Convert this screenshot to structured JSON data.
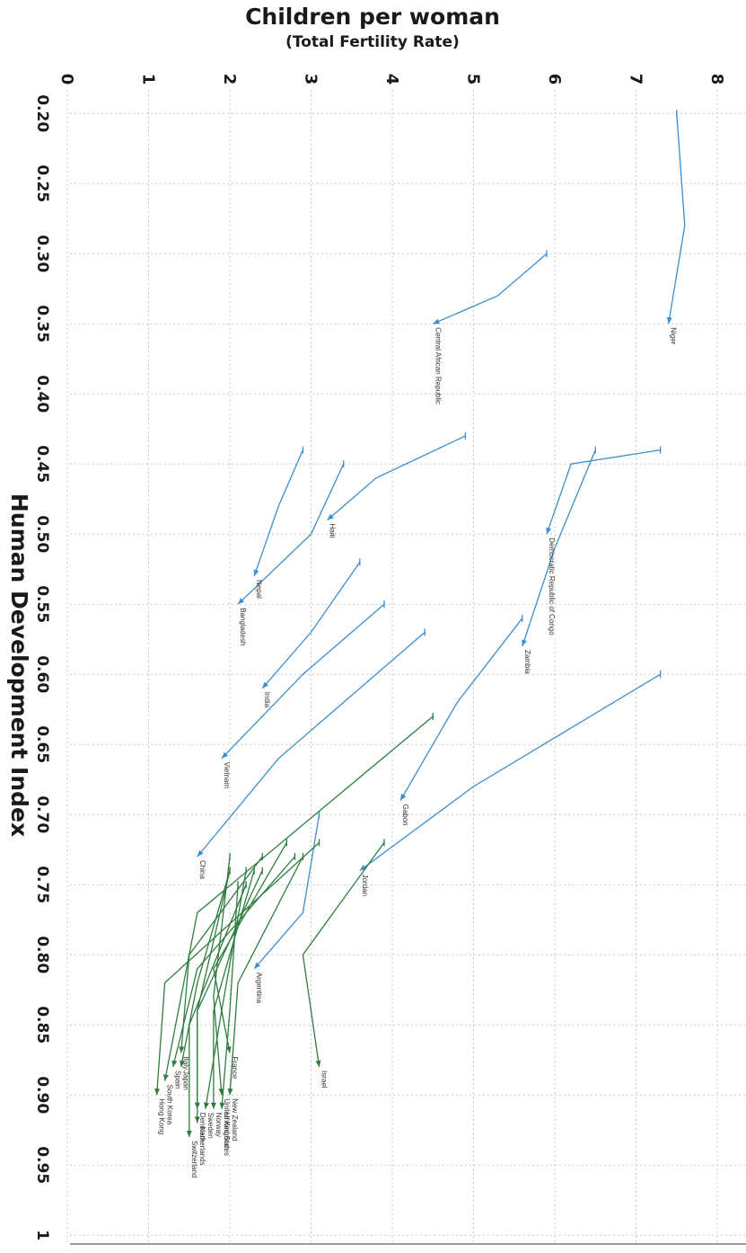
{
  "chart_data": {
    "type": "line",
    "title": "Children per woman",
    "subtitle": "(Total Fertility Rate)",
    "xlabel": "Human Development Index",
    "xlim": [
      0.18,
      1.0
    ],
    "ylim": [
      0,
      8.3
    ],
    "x_ticks": [
      "0.20",
      "0.25",
      "0.30",
      "0.35",
      "0.40",
      "0.45",
      "0.50",
      "0.55",
      "0.60",
      "0.65",
      "0.70",
      "0.75",
      "0.80",
      "0.85",
      "0.90",
      "0.95",
      "1"
    ],
    "y_ticks": [
      "0",
      "1",
      "2",
      "3",
      "4",
      "5",
      "6",
      "7",
      "8"
    ],
    "grid": true,
    "colors": {
      "developing": "#3d8ecf",
      "developed": "#2e7d3e"
    },
    "series": [
      {
        "name": "Niger",
        "group": "developing",
        "points": [
          [
            0.2,
            7.5
          ],
          [
            0.28,
            7.6
          ],
          [
            0.35,
            7.4
          ]
        ]
      },
      {
        "name": "Central African Republic",
        "group": "developing",
        "points": [
          [
            0.3,
            5.9
          ],
          [
            0.33,
            5.3
          ],
          [
            0.35,
            4.5
          ]
        ]
      },
      {
        "name": "Democratic Republic of Congo",
        "group": "developing",
        "points": [
          [
            0.44,
            7.3
          ],
          [
            0.45,
            6.2
          ],
          [
            0.5,
            5.9
          ]
        ]
      },
      {
        "name": "Haiti",
        "group": "developing",
        "points": [
          [
            0.43,
            4.9
          ],
          [
            0.46,
            3.8
          ],
          [
            0.49,
            3.2
          ]
        ]
      },
      {
        "name": "Nepal",
        "group": "developing",
        "points": [
          [
            0.44,
            2.9
          ],
          [
            0.48,
            2.6
          ],
          [
            0.53,
            2.3
          ]
        ]
      },
      {
        "name": "Bangladesh",
        "group": "developing",
        "points": [
          [
            0.45,
            3.4
          ],
          [
            0.5,
            3.0
          ],
          [
            0.55,
            2.1
          ]
        ]
      },
      {
        "name": "India",
        "group": "developing",
        "points": [
          [
            0.52,
            3.6
          ],
          [
            0.57,
            3.0
          ],
          [
            0.61,
            2.4
          ]
        ]
      },
      {
        "name": "Zambia",
        "group": "developing",
        "points": [
          [
            0.44,
            6.5
          ],
          [
            0.51,
            6.0
          ],
          [
            0.58,
            5.6
          ]
        ]
      },
      {
        "name": "Vietnam",
        "group": "developing",
        "points": [
          [
            0.55,
            3.9
          ],
          [
            0.6,
            2.9
          ],
          [
            0.66,
            1.9
          ]
        ]
      },
      {
        "name": "Gabon",
        "group": "developing",
        "points": [
          [
            0.56,
            5.6
          ],
          [
            0.62,
            4.8
          ],
          [
            0.69,
            4.1
          ]
        ]
      },
      {
        "name": "Jordan",
        "group": "developing",
        "points": [
          [
            0.6,
            7.3
          ],
          [
            0.68,
            5.0
          ],
          [
            0.74,
            3.6
          ]
        ]
      },
      {
        "name": "China",
        "group": "developing",
        "points": [
          [
            0.57,
            4.4
          ],
          [
            0.66,
            2.6
          ],
          [
            0.73,
            1.6
          ]
        ]
      },
      {
        "name": "Argentina",
        "group": "developing",
        "points": [
          [
            0.7,
            3.1
          ],
          [
            0.77,
            2.9
          ],
          [
            0.81,
            2.3
          ]
        ]
      },
      {
        "name": "Israel",
        "group": "developed",
        "points": [
          [
            0.72,
            3.9
          ],
          [
            0.8,
            2.9
          ],
          [
            0.88,
            3.1
          ]
        ]
      },
      {
        "name": "France",
        "group": "developed",
        "points": [
          [
            0.72,
            2.7
          ],
          [
            0.81,
            1.8
          ],
          [
            0.87,
            2.0
          ]
        ]
      },
      {
        "name": "Italy",
        "group": "developed",
        "points": [
          [
            0.73,
            2.4
          ],
          [
            0.8,
            1.5
          ],
          [
            0.87,
            1.4
          ]
        ]
      },
      {
        "name": "Spain",
        "group": "developed",
        "points": [
          [
            0.73,
            2.8
          ],
          [
            0.81,
            1.6
          ],
          [
            0.88,
            1.3
          ]
        ]
      },
      {
        "name": "Japan",
        "group": "developed",
        "points": [
          [
            0.74,
            2.0
          ],
          [
            0.82,
            1.6
          ],
          [
            0.88,
            1.4
          ]
        ]
      },
      {
        "name": "South Korea",
        "group": "developed",
        "points": [
          [
            0.63,
            4.5
          ],
          [
            0.77,
            1.6
          ],
          [
            0.89,
            1.2
          ]
        ]
      },
      {
        "name": "Hong Kong",
        "group": "developed",
        "points": [
          [
            0.72,
            3.1
          ],
          [
            0.82,
            1.2
          ],
          [
            0.9,
            1.1
          ]
        ]
      },
      {
        "name": "New Zealand",
        "group": "developed",
        "points": [
          [
            0.73,
            2.9
          ],
          [
            0.82,
            2.1
          ],
          [
            0.9,
            2.0
          ]
        ]
      },
      {
        "name": "United Kingdom",
        "group": "developed",
        "points": [
          [
            0.73,
            2.0
          ],
          [
            0.83,
            1.8
          ],
          [
            0.9,
            1.9
          ]
        ]
      },
      {
        "name": "United States",
        "group": "developed",
        "points": [
          [
            0.75,
            2.1
          ],
          [
            0.84,
            2.0
          ],
          [
            0.91,
            1.9
          ]
        ]
      },
      {
        "name": "Sweden",
        "group": "developed",
        "points": [
          [
            0.74,
            2.2
          ],
          [
            0.84,
            1.9
          ],
          [
            0.91,
            1.7
          ]
        ]
      },
      {
        "name": "Norway",
        "group": "developed",
        "points": [
          [
            0.74,
            2.3
          ],
          [
            0.84,
            1.8
          ],
          [
            0.91,
            1.8
          ]
        ]
      },
      {
        "name": "Denmark",
        "group": "developed",
        "points": [
          [
            0.74,
            2.0
          ],
          [
            0.84,
            1.6
          ],
          [
            0.91,
            1.6
          ]
        ]
      },
      {
        "name": "Netherlands",
        "group": "developed",
        "points": [
          [
            0.74,
            2.4
          ],
          [
            0.84,
            1.6
          ],
          [
            0.92,
            1.6
          ]
        ]
      },
      {
        "name": "Switzerland",
        "group": "developed",
        "points": [
          [
            0.75,
            2.2
          ],
          [
            0.85,
            1.5
          ],
          [
            0.93,
            1.5
          ]
        ]
      }
    ]
  }
}
